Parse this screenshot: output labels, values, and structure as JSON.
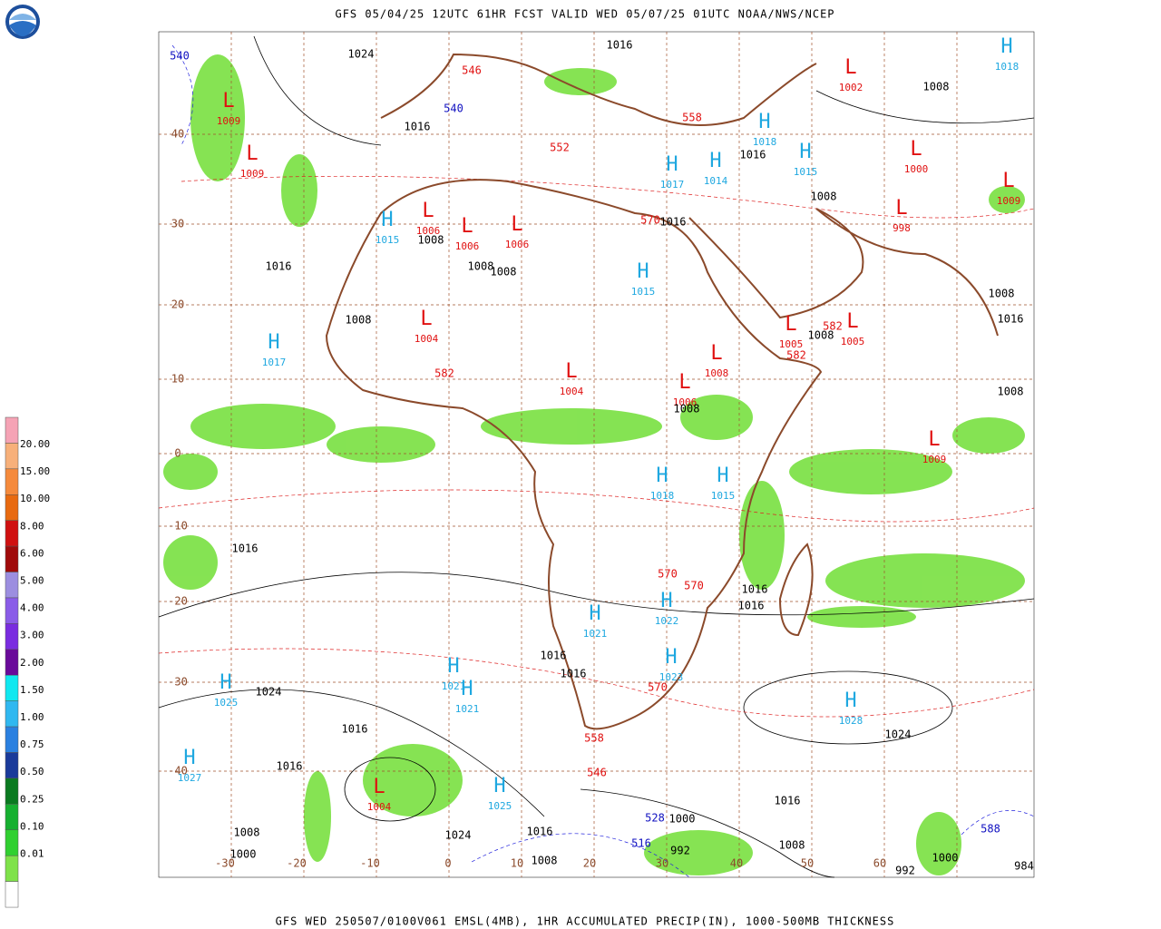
{
  "header": {
    "title": "GFS 05/04/25 12UTC 61HR FCST VALID WED 05/07/25 01UTC NOAA/NWS/NCEP"
  },
  "footer": {
    "title": "GFS WED 250507/0100V061 EMSL(4MB), 1HR ACCUMULATED PRECIP(IN), 1000-500MB THICKNESS"
  },
  "legend": {
    "levels": [
      "20.00",
      "15.00",
      "10.00",
      "8.00",
      "6.00",
      "5.00",
      "4.00",
      "3.00",
      "2.00",
      "1.50",
      "1.00",
      "0.75",
      "0.50",
      "0.25",
      "0.10",
      "0.01"
    ]
  },
  "map": {
    "lat_labels": [
      "40",
      "30",
      "20",
      "10",
      "0",
      "-10",
      "-20",
      "-30",
      "-40"
    ],
    "lon_labels": [
      "-30",
      "-20",
      "-10",
      "0",
      "10",
      "20",
      "30",
      "40",
      "50",
      "60"
    ],
    "centers": [
      {
        "letter": "L",
        "value": "1009"
      },
      {
        "letter": "L",
        "value": "1009"
      },
      {
        "letter": "L",
        "value": "1009"
      },
      {
        "letter": "L",
        "value": "1002"
      },
      {
        "letter": "H",
        "value": "1018"
      },
      {
        "letter": "H",
        "value": "1018"
      },
      {
        "letter": "H",
        "value": "1015"
      },
      {
        "letter": "H",
        "value": "1017"
      },
      {
        "letter": "H",
        "value": "1014"
      },
      {
        "letter": "L",
        "value": "1000"
      },
      {
        "letter": "L",
        "value": "998"
      },
      {
        "letter": "H",
        "value": "1015"
      },
      {
        "letter": "L",
        "value": "1006"
      },
      {
        "letter": "L",
        "value": "1006"
      },
      {
        "letter": "L",
        "value": "1006"
      },
      {
        "letter": "H",
        "value": "1015"
      },
      {
        "letter": "L",
        "value": "1004"
      },
      {
        "letter": "H",
        "value": "1017"
      },
      {
        "letter": "L",
        "value": "1005"
      },
      {
        "letter": "L",
        "value": "1005"
      },
      {
        "letter": "L",
        "value": "1008"
      },
      {
        "letter": "L",
        "value": "1006"
      },
      {
        "letter": "L",
        "value": "1004"
      },
      {
        "letter": "L",
        "value": "1009"
      },
      {
        "letter": "H",
        "value": "1018"
      },
      {
        "letter": "H",
        "value": "1015"
      },
      {
        "letter": "H",
        "value": "1021"
      },
      {
        "letter": "H",
        "value": "1022"
      },
      {
        "letter": "H",
        "value": "1023"
      },
      {
        "letter": "H",
        "value": "1025"
      },
      {
        "letter": "H",
        "value": "1021"
      },
      {
        "letter": "H",
        "value": "1021"
      },
      {
        "letter": "H",
        "value": "1028"
      },
      {
        "letter": "H",
        "value": "1027"
      },
      {
        "letter": "L",
        "value": "1004"
      },
      {
        "letter": "H",
        "value": "1025"
      }
    ],
    "contour_labels": [
      {
        "text": "1024",
        "kind": "isobar"
      },
      {
        "text": "1016",
        "kind": "isobar"
      },
      {
        "text": "546",
        "kind": "thickness"
      },
      {
        "text": "540",
        "kind": "thickness-cold"
      },
      {
        "text": "540",
        "kind": "thickness-cold"
      },
      {
        "text": "558",
        "kind": "thickness"
      },
      {
        "text": "1008",
        "kind": "isobar"
      },
      {
        "text": "1016",
        "kind": "isobar"
      },
      {
        "text": "552",
        "kind": "thickness"
      },
      {
        "text": "1016",
        "kind": "isobar"
      },
      {
        "text": "1008",
        "kind": "isobar"
      },
      {
        "text": "570",
        "kind": "thickness"
      },
      {
        "text": "1016",
        "kind": "isobar"
      },
      {
        "text": "1016",
        "kind": "isobar"
      },
      {
        "text": "1008",
        "kind": "isobar"
      },
      {
        "text": "1008",
        "kind": "isobar"
      },
      {
        "text": "1008",
        "kind": "isobar"
      },
      {
        "text": "1008",
        "kind": "isobar"
      },
      {
        "text": "1008",
        "kind": "isobar"
      },
      {
        "text": "1016",
        "kind": "isobar"
      },
      {
        "text": "582",
        "kind": "thickness"
      },
      {
        "text": "582",
        "kind": "thickness"
      },
      {
        "text": "582",
        "kind": "thickness"
      },
      {
        "text": "1008",
        "kind": "isobar"
      },
      {
        "text": "1008",
        "kind": "isobar"
      },
      {
        "text": "1016",
        "kind": "isobar"
      },
      {
        "text": "570",
        "kind": "thickness"
      },
      {
        "text": "570",
        "kind": "thickness"
      },
      {
        "text": "1016",
        "kind": "isobar"
      },
      {
        "text": "1016",
        "kind": "isobar"
      },
      {
        "text": "1016",
        "kind": "isobar"
      },
      {
        "text": "1016",
        "kind": "isobar"
      },
      {
        "text": "570",
        "kind": "thickness"
      },
      {
        "text": "1024",
        "kind": "isobar"
      },
      {
        "text": "1016",
        "kind": "isobar"
      },
      {
        "text": "1024",
        "kind": "isobar"
      },
      {
        "text": "558",
        "kind": "thickness"
      },
      {
        "text": "1016",
        "kind": "isobar"
      },
      {
        "text": "546",
        "kind": "thickness"
      },
      {
        "text": "1016",
        "kind": "isobar"
      },
      {
        "text": "1008",
        "kind": "isobar"
      },
      {
        "text": "1024",
        "kind": "isobar"
      },
      {
        "text": "1016",
        "kind": "isobar"
      },
      {
        "text": "528",
        "kind": "thickness-cold"
      },
      {
        "text": "1000",
        "kind": "isobar"
      },
      {
        "text": "516",
        "kind": "thickness-cold"
      },
      {
        "text": "992",
        "kind": "isobar"
      },
      {
        "text": "1008",
        "kind": "isobar"
      },
      {
        "text": "1008",
        "kind": "isobar"
      },
      {
        "text": "1000",
        "kind": "isobar"
      },
      {
        "text": "1000",
        "kind": "isobar"
      },
      {
        "text": "992",
        "kind": "isobar"
      },
      {
        "text": "588",
        "kind": "thickness-cold"
      },
      {
        "text": "984",
        "kind": "isobar"
      },
      {
        "text": "1008",
        "kind": "isobar"
      }
    ]
  }
}
